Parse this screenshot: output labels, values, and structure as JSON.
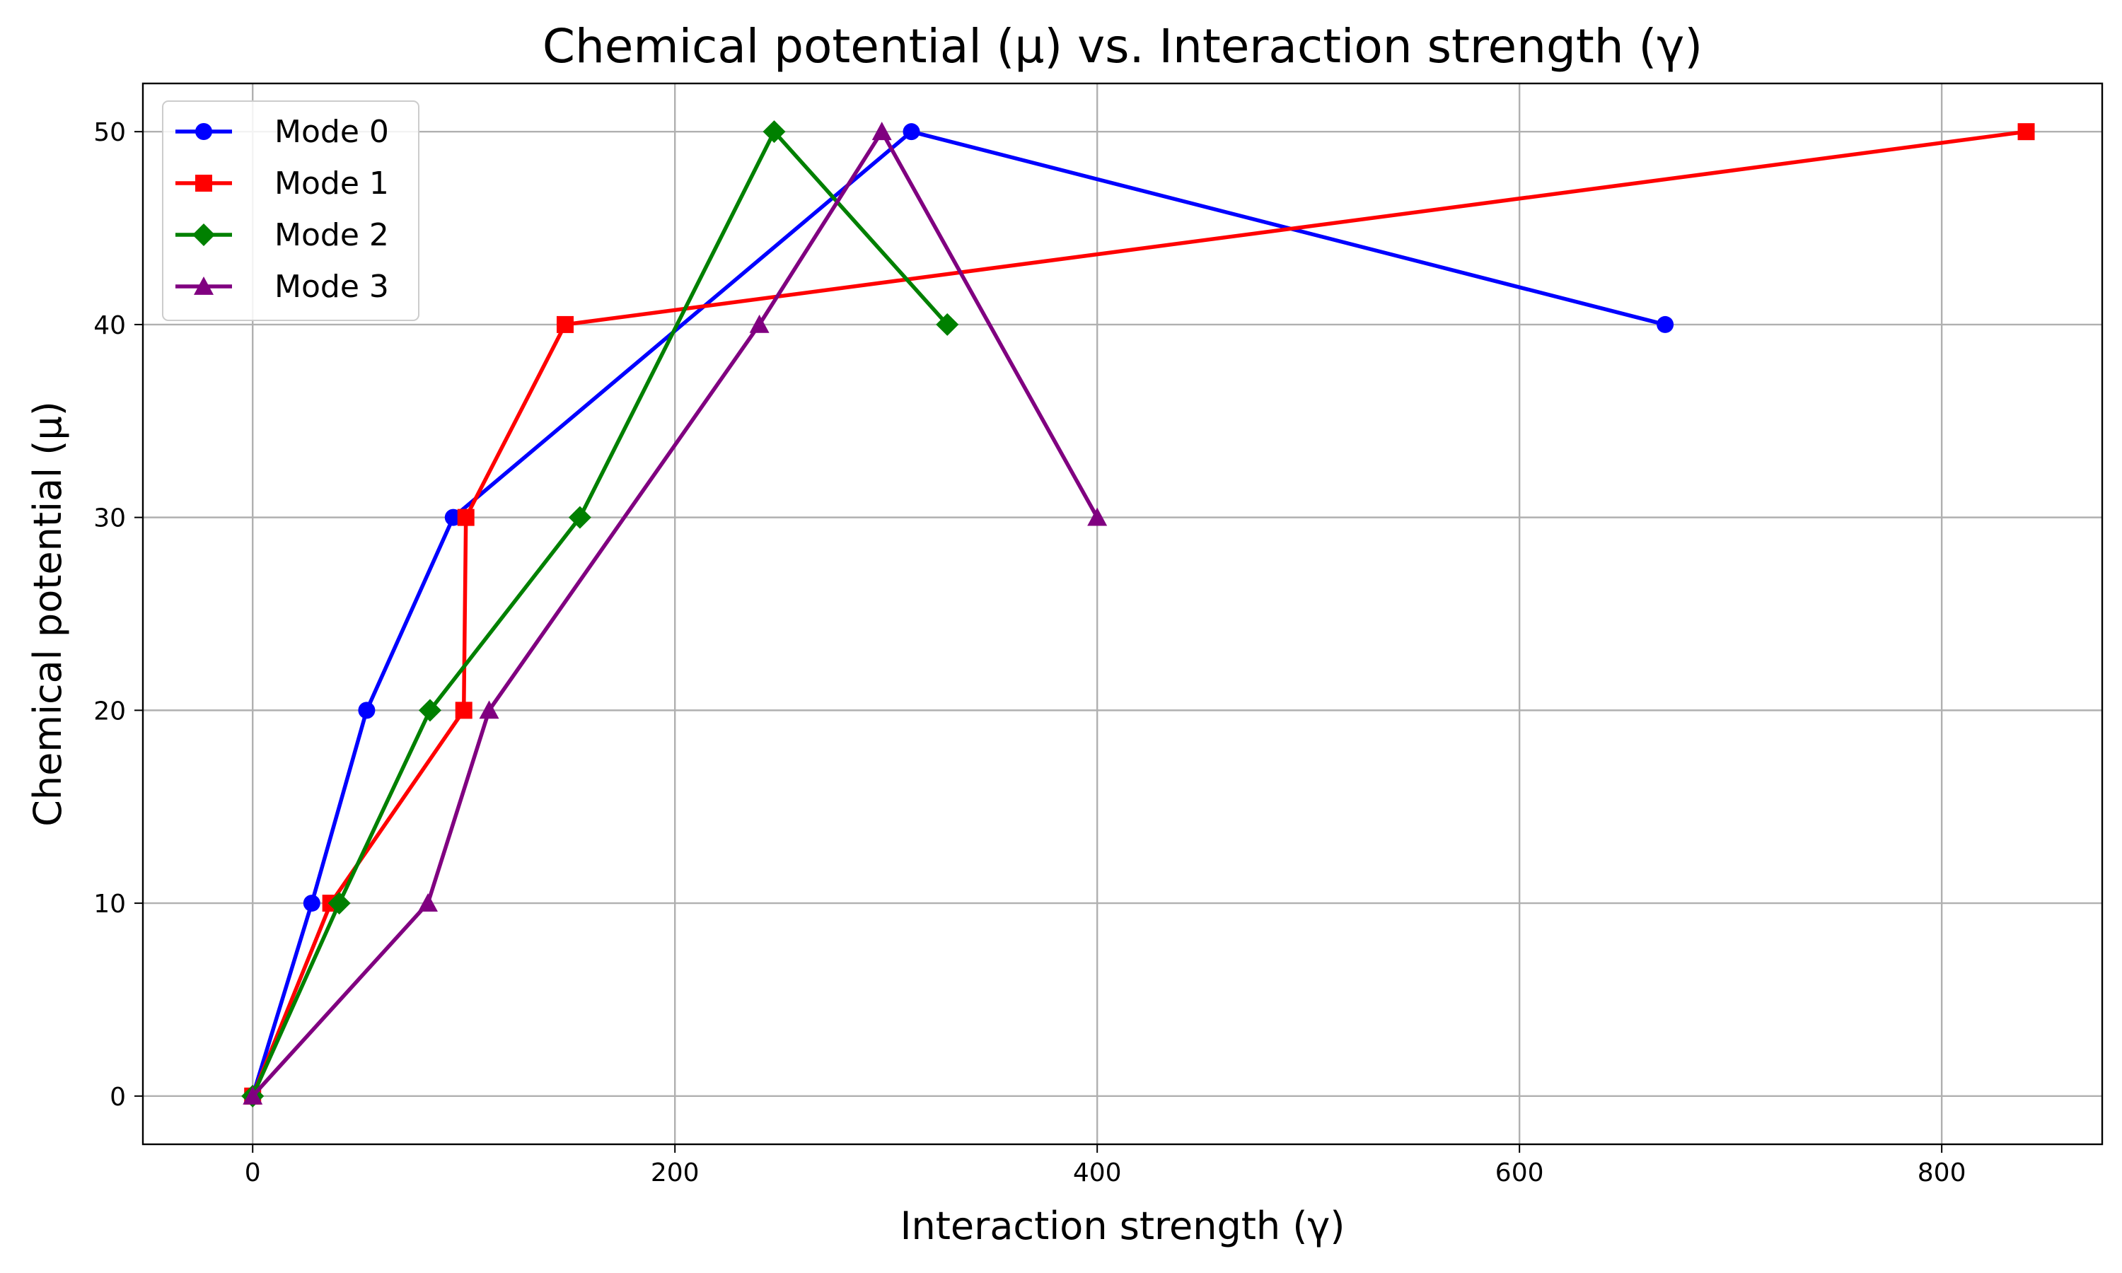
{
  "chart_data": {
    "type": "line",
    "title": "Chemical potential (μ) vs. Interaction strength (γ)",
    "xlabel": "Interaction strength (γ)",
    "ylabel": "Chemical potential (μ)",
    "xlim": [
      -52,
      876
    ],
    "ylim": [
      -2.5,
      52.5
    ],
    "xticks": [
      0,
      200,
      400,
      600,
      800
    ],
    "yticks": [
      0,
      10,
      20,
      30,
      40,
      50
    ],
    "grid": true,
    "legend_position": "upper-left",
    "series": [
      {
        "name": "Mode 0",
        "color": "#0000ff",
        "marker": "circle",
        "x": [
          0,
          28,
          54,
          95,
          312,
          669
        ],
        "y": [
          0,
          10,
          20,
          30,
          50,
          40
        ]
      },
      {
        "name": "Mode 1",
        "color": "#ff0000",
        "marker": "square",
        "x": [
          0,
          37,
          100,
          101,
          148,
          840
        ],
        "y": [
          0,
          10,
          20,
          30,
          40,
          50
        ]
      },
      {
        "name": "Mode 2",
        "color": "#008000",
        "marker": "diamond",
        "x": [
          0,
          41,
          84,
          155,
          247,
          329
        ],
        "y": [
          0,
          10,
          20,
          30,
          50,
          40
        ]
      },
      {
        "name": "Mode 3",
        "color": "#800080",
        "marker": "triangle",
        "x": [
          0,
          83,
          112,
          240,
          298,
          400
        ],
        "y": [
          0,
          10,
          20,
          40,
          50,
          30
        ]
      }
    ]
  }
}
